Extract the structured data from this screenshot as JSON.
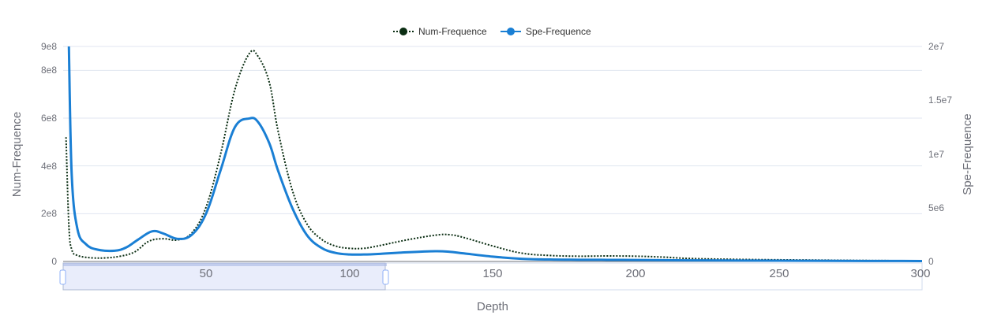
{
  "chart_data": {
    "type": "line",
    "xlabel": "Depth",
    "x_ticks": [
      "50",
      "100",
      "150",
      "200",
      "250",
      "300"
    ],
    "xlim": [
      0,
      300
    ],
    "left_axis": {
      "label": "Num-Frequence",
      "ticks": [
        "0",
        "2e8",
        "4e8",
        "6e8",
        "8e8",
        "9e8"
      ],
      "ylim": [
        0,
        900000000
      ]
    },
    "right_axis": {
      "label": "Spe-Frequence",
      "ticks": [
        "0",
        "5e6",
        "1e7",
        "1.5e7",
        "2e7"
      ],
      "ylim": [
        0,
        20000000
      ]
    },
    "legend": [
      "Num-Frequence",
      "Spe-Frequence"
    ],
    "legend_position": "top-center",
    "grid": true,
    "data_zoom": {
      "start_percent": 0,
      "end_percent": 37.5
    },
    "series": [
      {
        "name": "Num-Frequence",
        "axis": "left",
        "color": "#0b2e13",
        "style": "dotted",
        "points": [
          [
            1,
            520000000.0
          ],
          [
            2,
            150000000.0
          ],
          [
            3,
            50000000.0
          ],
          [
            5,
            25000000.0
          ],
          [
            10,
            15000000.0
          ],
          [
            15,
            15000000.0
          ],
          [
            20,
            22000000.0
          ],
          [
            25,
            40000000.0
          ],
          [
            30,
            85000000.0
          ],
          [
            35,
            95000000.0
          ],
          [
            40,
            90000000.0
          ],
          [
            45,
            120000000.0
          ],
          [
            50,
            230000000.0
          ],
          [
            55,
            450000000.0
          ],
          [
            60,
            720000000.0
          ],
          [
            65,
            870000000.0
          ],
          [
            68,
            860000000.0
          ],
          [
            72,
            750000000.0
          ],
          [
            75,
            550000000.0
          ],
          [
            80,
            300000000.0
          ],
          [
            85,
            160000000.0
          ],
          [
            90,
            95000000.0
          ],
          [
            95,
            65000000.0
          ],
          [
            100,
            55000000.0
          ],
          [
            105,
            55000000.0
          ],
          [
            110,
            65000000.0
          ],
          [
            120,
            90000000.0
          ],
          [
            130,
            110000000.0
          ],
          [
            135,
            112000000.0
          ],
          [
            140,
            100000000.0
          ],
          [
            150,
            65000000.0
          ],
          [
            160,
            35000000.0
          ],
          [
            170,
            25000000.0
          ],
          [
            180,
            22000000.0
          ],
          [
            190,
            23000000.0
          ],
          [
            200,
            22000000.0
          ],
          [
            210,
            18000000.0
          ],
          [
            220,
            12000000.0
          ],
          [
            240,
            8000000.0
          ],
          [
            260,
            6000000.0
          ],
          [
            280,
            4000000.0
          ],
          [
            300,
            3000000.0
          ]
        ]
      },
      {
        "name": "Spe-Frequence",
        "axis": "right",
        "color": "#1a7fd4",
        "style": "solid",
        "points": [
          [
            2,
            20000000.0
          ],
          [
            3,
            8000000.0
          ],
          [
            5,
            3000000.0
          ],
          [
            8,
            1600000.0
          ],
          [
            12,
            1100000.0
          ],
          [
            18,
            1000000.0
          ],
          [
            22,
            1300000.0
          ],
          [
            26,
            2000000.0
          ],
          [
            31,
            2800000.0
          ],
          [
            35,
            2600000.0
          ],
          [
            40,
            2100000.0
          ],
          [
            45,
            2500000.0
          ],
          [
            50,
            4500000.0
          ],
          [
            55,
            8500000.0
          ],
          [
            60,
            12500000.0
          ],
          [
            65,
            13300000.0
          ],
          [
            68,
            13000000.0
          ],
          [
            72,
            11000000.0
          ],
          [
            75,
            8500000.0
          ],
          [
            80,
            5000000.0
          ],
          [
            85,
            2500000.0
          ],
          [
            90,
            1300000.0
          ],
          [
            95,
            800000
          ],
          [
            100,
            650000
          ],
          [
            105,
            650000
          ],
          [
            110,
            700000
          ],
          [
            120,
            850000
          ],
          [
            130,
            950000
          ],
          [
            135,
            900000
          ],
          [
            140,
            750000
          ],
          [
            150,
            450000
          ],
          [
            160,
            250000
          ],
          [
            170,
            180000
          ],
          [
            180,
            160000
          ],
          [
            190,
            150000
          ],
          [
            200,
            140000
          ],
          [
            210,
            120000
          ],
          [
            220,
            100000
          ],
          [
            240,
            80000
          ],
          [
            260,
            60000
          ],
          [
            280,
            50000
          ],
          [
            300,
            40000
          ]
        ]
      }
    ]
  }
}
